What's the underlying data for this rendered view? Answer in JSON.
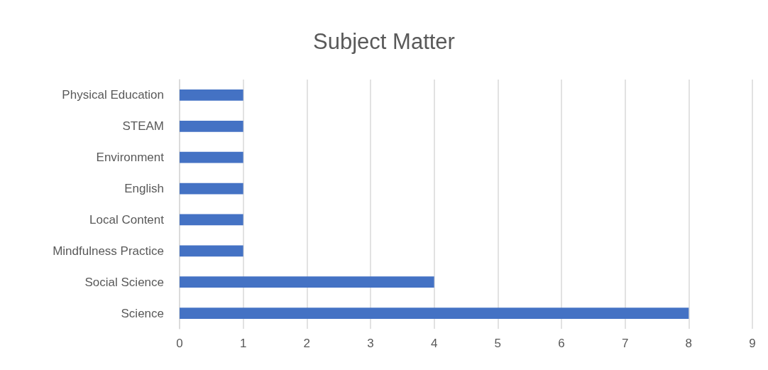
{
  "chart_data": {
    "type": "bar",
    "title": "Subject Matter",
    "orientation": "horizontal",
    "categories": [
      "Physical Education",
      "STEAM",
      "Environment",
      "English",
      "Local Content",
      "Mindfulness Practice",
      "Social Science",
      "Science"
    ],
    "values": [
      1,
      1,
      1,
      1,
      1,
      1,
      4,
      8
    ],
    "color": "#4472c4",
    "xlim": [
      0,
      9
    ],
    "xticks": [
      0,
      1,
      2,
      3,
      4,
      5,
      6,
      7,
      8,
      9
    ],
    "grid": "x"
  }
}
